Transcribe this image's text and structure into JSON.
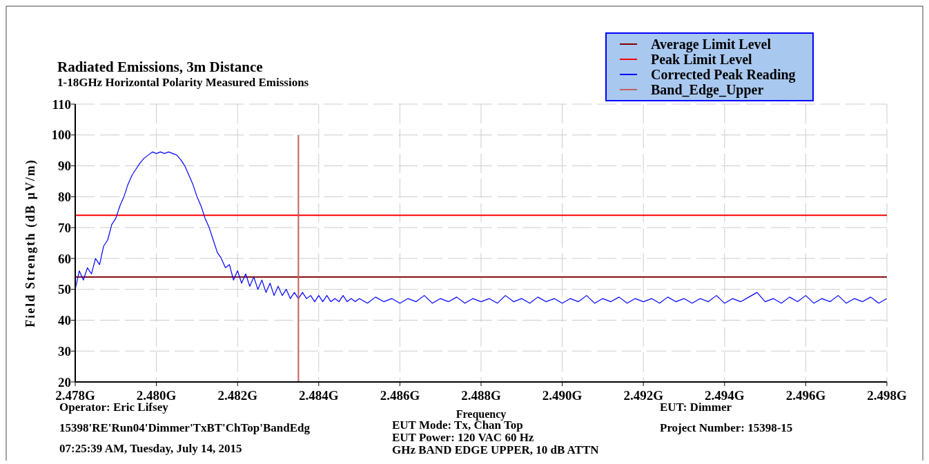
{
  "chart_data": {
    "type": "line",
    "title": "Radiated Emissions, 3m Distance",
    "subtitle": "1-18GHz Horizontal Polarity Measured Emissions",
    "xlabel": "Frequency",
    "ylabel": "Field Strength (dB µV/m)",
    "xlim": [
      2.478,
      2.498
    ],
    "xticks": [
      {
        "value": 2.478,
        "label": "2.478G"
      },
      {
        "value": 2.48,
        "label": "2.480G"
      },
      {
        "value": 2.482,
        "label": "2.482G"
      },
      {
        "value": 2.484,
        "label": "2.484G"
      },
      {
        "value": 2.486,
        "label": "2.486G"
      },
      {
        "value": 2.488,
        "label": "2.488G"
      },
      {
        "value": 2.49,
        "label": "2.490G"
      },
      {
        "value": 2.492,
        "label": "2.492G"
      },
      {
        "value": 2.494,
        "label": "2.494G"
      },
      {
        "value": 2.496,
        "label": "2.496G"
      },
      {
        "value": 2.498,
        "label": "2.498G"
      }
    ],
    "ylim": [
      20,
      110
    ],
    "yticks": [
      20,
      30,
      40,
      50,
      60,
      70,
      80,
      90,
      100,
      110
    ],
    "grid": true,
    "legend": "top right",
    "series": [
      {
        "name": "Average Limit Level",
        "color": "#800000",
        "x": [
          2.478,
          2.498
        ],
        "values": [
          54,
          54
        ]
      },
      {
        "name": "Peak Limit Level",
        "color": "#ff0000",
        "x": [
          2.478,
          2.498
        ],
        "values": [
          74,
          74
        ]
      },
      {
        "name": "Corrected Peak Reading",
        "color": "#0000ff",
        "x": [
          2.478,
          2.4781,
          2.4782,
          2.4783,
          2.4784,
          2.4785,
          2.4786,
          2.4787,
          2.4788,
          2.4789,
          2.479,
          2.4791,
          2.4792,
          2.4793,
          2.4794,
          2.4795,
          2.4796,
          2.4797,
          2.4798,
          2.4799,
          2.48,
          2.4801,
          2.4802,
          2.4803,
          2.4804,
          2.4805,
          2.4806,
          2.4807,
          2.4808,
          2.4809,
          2.481,
          2.4811,
          2.4812,
          2.4813,
          2.4814,
          2.4815,
          2.4816,
          2.4817,
          2.4818,
          2.4819,
          2.482,
          2.4821,
          2.4822,
          2.4823,
          2.4824,
          2.4825,
          2.4826,
          2.4827,
          2.4828,
          2.4829,
          2.483,
          2.4831,
          2.4832,
          2.4833,
          2.4834,
          2.4835,
          2.4836,
          2.4837,
          2.4838,
          2.4839,
          2.484,
          2.4841,
          2.4842,
          2.4843,
          2.4844,
          2.4845,
          2.4846,
          2.4847,
          2.4848,
          2.4849,
          2.485,
          2.4852,
          2.4854,
          2.4856,
          2.4858,
          2.486,
          2.4862,
          2.4864,
          2.4866,
          2.4868,
          2.487,
          2.4872,
          2.4874,
          2.4876,
          2.4878,
          2.488,
          2.4882,
          2.4884,
          2.4886,
          2.4888,
          2.489,
          2.4892,
          2.4894,
          2.4896,
          2.4898,
          2.49,
          2.4902,
          2.4904,
          2.4906,
          2.4908,
          2.491,
          2.4912,
          2.4914,
          2.4916,
          2.4918,
          2.492,
          2.4922,
          2.4924,
          2.4926,
          2.4928,
          2.493,
          2.4932,
          2.4934,
          2.4936,
          2.4938,
          2.494,
          2.4942,
          2.4944,
          2.4946,
          2.4948,
          2.495,
          2.4952,
          2.4954,
          2.4956,
          2.4958,
          2.496,
          2.4962,
          2.4964,
          2.4966,
          2.4968,
          2.497,
          2.4972,
          2.4974,
          2.4976,
          2.4978,
          2.498
        ],
        "values": [
          50,
          56,
          53,
          57,
          55,
          60,
          58,
          64,
          66,
          71,
          73,
          77,
          80,
          84,
          87,
          89,
          91,
          92.5,
          93.5,
          94.5,
          94,
          94.5,
          94,
          94.5,
          94,
          93.5,
          92,
          90,
          87,
          84,
          80,
          77,
          73,
          70,
          66,
          62,
          60,
          57,
          58,
          53,
          56,
          52,
          55,
          51,
          54,
          50,
          53,
          49,
          52,
          48,
          51,
          48,
          50,
          47,
          49,
          47,
          49,
          47,
          48,
          46,
          48,
          46,
          48,
          46,
          47,
          46,
          48,
          46,
          47,
          46,
          47,
          45.5,
          47.5,
          46,
          47,
          45.5,
          47,
          46,
          48,
          45.5,
          47,
          46,
          47.5,
          45.5,
          47,
          46,
          47,
          45.5,
          48,
          46,
          47,
          45.5,
          47.5,
          46,
          47,
          45.5,
          47,
          46,
          48,
          45.5,
          47,
          46,
          47.5,
          45.5,
          47,
          46,
          47,
          45.5,
          47.5,
          46,
          47,
          45.5,
          47,
          46,
          48,
          45.5,
          47,
          46,
          47.5,
          49,
          46,
          47,
          45.5,
          47.5,
          46,
          48,
          45.5,
          47,
          46,
          48,
          45.5,
          47,
          46,
          47.5,
          45.5,
          47
        ]
      },
      {
        "name": "Band_Edge_Upper",
        "color": "#c06060",
        "x": [
          2.4835,
          2.4835
        ],
        "values": [
          20,
          100
        ]
      }
    ],
    "annotations": [
      "Operator: Eric Lifsey",
      "15398'RE'Run04'Dimmer'TxBT'ChTop'BandEdg",
      "07:25:39 AM, Tuesday, July 14, 2015",
      "EUT Mode: Tx, Chan Top",
      "EUT Power: 120 VAC 60 Hz",
      "GHz BAND EDGE UPPER, 10 dB ATTN",
      "EUT: Dimmer",
      "Project Number: 15398-15"
    ]
  }
}
